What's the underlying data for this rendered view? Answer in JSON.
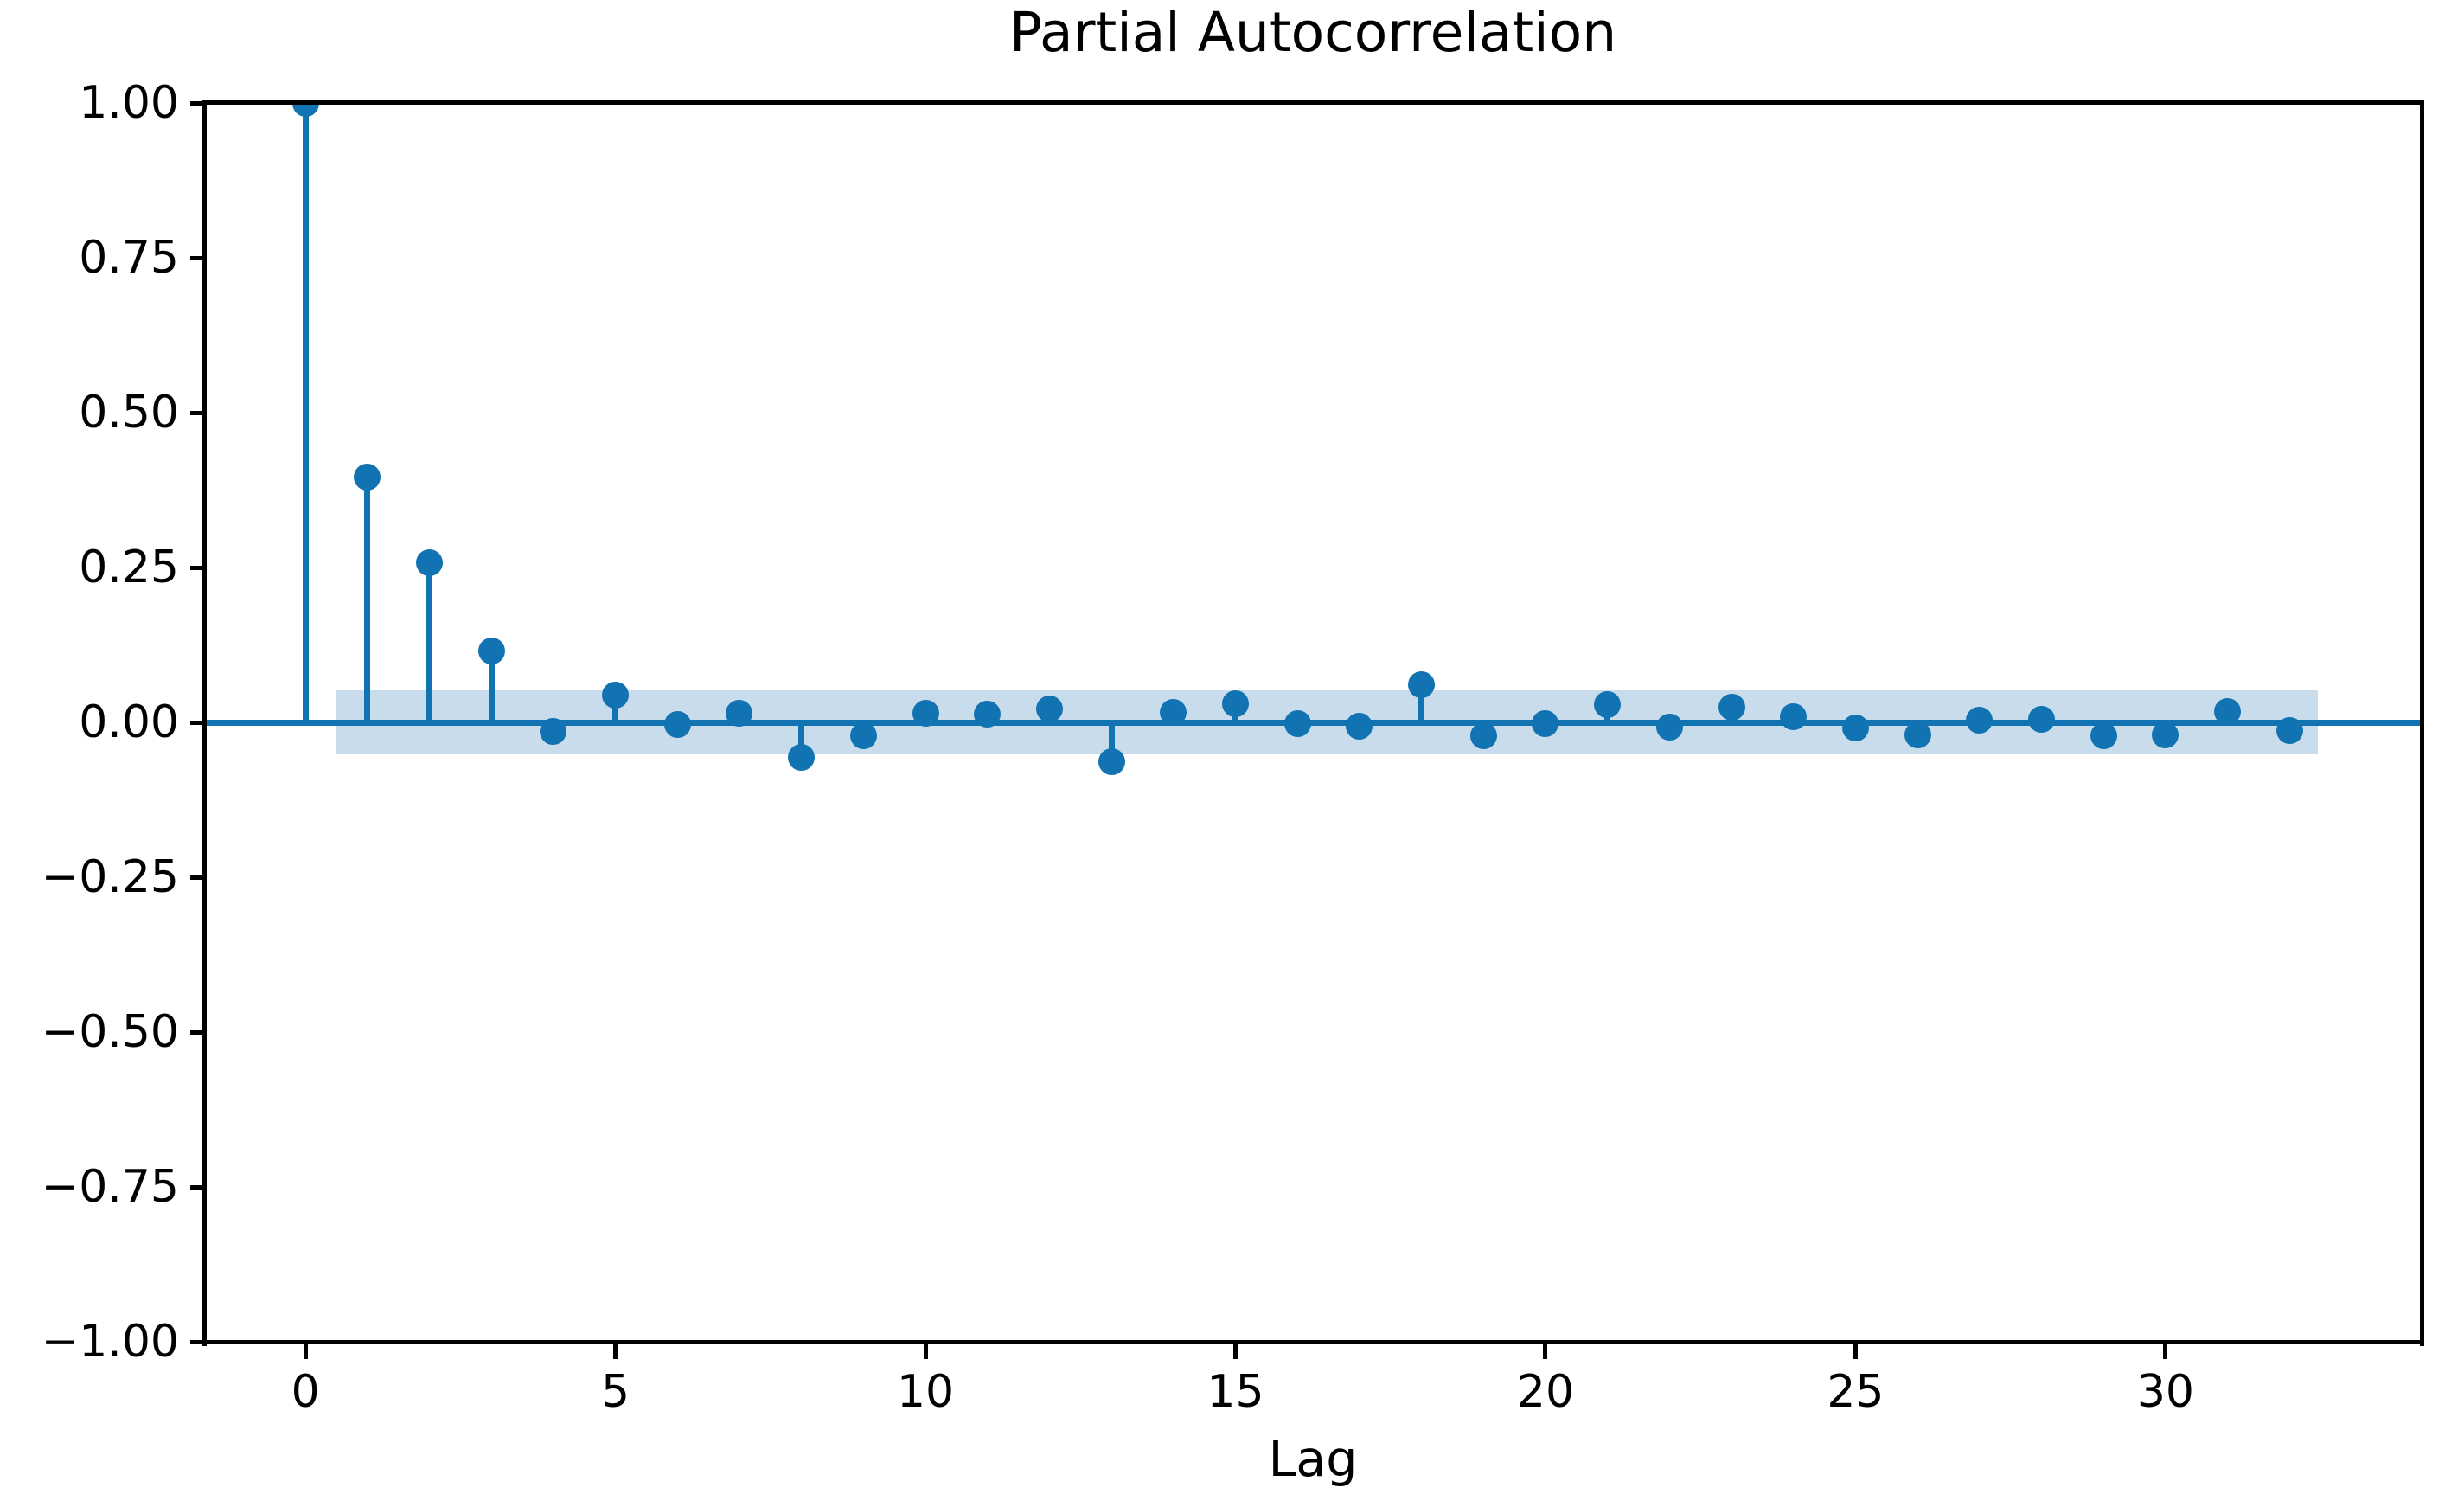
{
  "figure": {
    "title": "Partial Autocorrelation",
    "xlabel": "Lag"
  },
  "chart_data": {
    "type": "stem",
    "title": "Partial Autocorrelation",
    "xlabel": "Lag",
    "ylabel": "",
    "x": [
      0,
      1,
      2,
      3,
      4,
      5,
      6,
      7,
      8,
      9,
      10,
      11,
      12,
      13,
      14,
      15,
      16,
      17,
      18,
      19,
      20,
      21,
      22,
      23,
      24,
      25,
      26,
      27,
      28,
      29,
      30,
      31,
      32
    ],
    "values": [
      1.0,
      0.396,
      0.258,
      0.115,
      -0.014,
      0.044,
      -0.004,
      0.014,
      -0.057,
      -0.022,
      0.015,
      0.013,
      0.021,
      -0.063,
      0.016,
      0.03,
      -0.002,
      -0.006,
      0.061,
      -0.021,
      -0.002,
      0.028,
      -0.008,
      0.024,
      0.009,
      -0.009,
      -0.02,
      0.003,
      0.005,
      -0.022,
      -0.02,
      0.017,
      -0.013
    ],
    "confidence_band": {
      "low": -0.051,
      "high": 0.051,
      "x_start": 0.5,
      "x_end": 32.46
    },
    "xlim": [
      -1.62,
      34.13
    ],
    "ylim": [
      -1.0,
      1.0
    ],
    "xticks": [
      0,
      5,
      10,
      15,
      20,
      25,
      30
    ],
    "xtick_labels": [
      "0",
      "5",
      "10",
      "15",
      "20",
      "25",
      "30"
    ],
    "yticks": [
      1.0,
      0.75,
      0.5,
      0.25,
      0.0,
      -0.25,
      -0.5,
      -0.75,
      -1.0
    ],
    "ytick_labels": [
      "1.00",
      "0.75",
      "0.50",
      "0.25",
      "0.00",
      "−0.25",
      "−0.50",
      "−0.75",
      "−1.00"
    ],
    "grid": false,
    "legend": null,
    "colors": {
      "stem": "#1273b2",
      "marker": "#1273b2",
      "baseline": "#1273b2",
      "confidence_band": "#c8dcec",
      "axis": "#000000",
      "background": "#ffffff"
    }
  }
}
